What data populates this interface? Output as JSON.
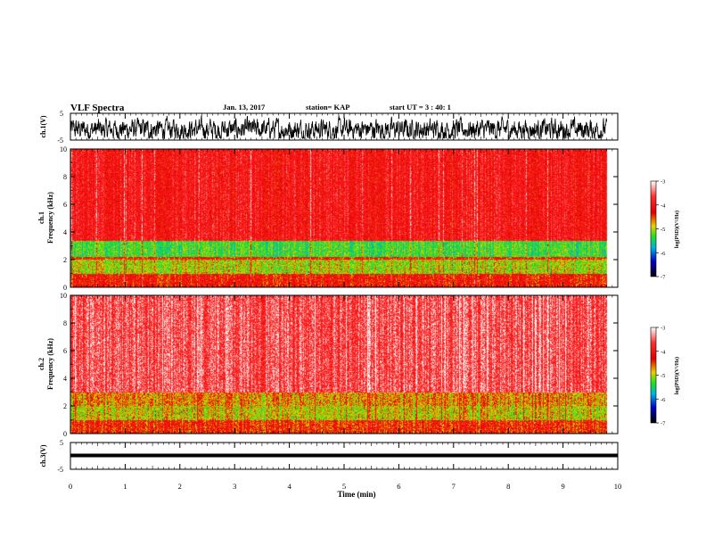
{
  "header": {
    "title": "VLF Spectra",
    "date": "Jan. 13, 2017",
    "station": "station= KAP",
    "start": "start  UT  =  3 : 40: 1"
  },
  "colors": {
    "waveform": "#000000",
    "bar_stops": [
      "#ffffff",
      "#ff2020",
      "#e8d000",
      "#20e020",
      "#00a0e0",
      "#0000c8",
      "#000000"
    ]
  },
  "chart_data": [
    {
      "id": "ch1-waveform",
      "type": "line",
      "ylabel": "ch.1(V)",
      "ylim": [
        -5,
        5
      ],
      "yticks": [
        "5",
        "-5"
      ],
      "xlim": [
        0,
        10
      ],
      "note_series": "dense noise waveform between about -4 V and +4 V, 0 to 9.8 min"
    },
    {
      "id": "ch1-spectrogram",
      "type": "heatmap",
      "ylabel": "ch.1\nFrequency (kHz)",
      "ylim": [
        0,
        10
      ],
      "yticks": [
        "0",
        "2",
        "4",
        "6",
        "8",
        "10"
      ],
      "xlim": [
        0,
        10
      ],
      "data_end_min": 9.8,
      "colorbar": {
        "label": "log(PSD)(V²/Hz)",
        "range": [
          -7,
          -3
        ],
        "ticks": [
          "-3",
          "-4",
          "-5",
          "-6",
          "-7"
        ]
      },
      "bands": [
        {
          "from_khz": 0,
          "to_khz": 1.0,
          "level": -4.2
        },
        {
          "from_khz": 1.0,
          "to_khz": 2.0,
          "level": -4.9
        },
        {
          "from_khz": 2.0,
          "to_khz": 2.2,
          "level": -4.3
        },
        {
          "from_khz": 2.2,
          "to_khz": 3.4,
          "level": -5.2
        },
        {
          "from_khz": 3.4,
          "to_khz": 10,
          "level": -3.9
        }
      ]
    },
    {
      "id": "ch2-spectrogram",
      "type": "heatmap",
      "ylabel": "ch.2\nFrequency (kHz)",
      "ylim": [
        0,
        10
      ],
      "yticks": [
        "0",
        "2",
        "4",
        "6",
        "8",
        "10"
      ],
      "xlim": [
        0,
        10
      ],
      "data_end_min": 9.8,
      "colorbar": {
        "label": "log(PSD)(V²/Hz)",
        "range": [
          -7,
          -3
        ],
        "ticks": [
          "-3",
          "-4",
          "-5",
          "-6",
          "-7"
        ]
      },
      "bands": [
        {
          "from_khz": 0,
          "to_khz": 1.0,
          "level": -4.3
        },
        {
          "from_khz": 1.0,
          "to_khz": 2.0,
          "level": -4.8
        },
        {
          "from_khz": 2.0,
          "to_khz": 3.0,
          "level": -4.6
        },
        {
          "from_khz": 3.0,
          "to_khz": 10,
          "level": -3.5
        }
      ]
    },
    {
      "id": "ch3-waveform",
      "type": "line",
      "ylabel": "ch.3(V)",
      "ylim": [
        -5,
        5
      ],
      "yticks": [
        "5",
        "-5"
      ],
      "xlim": [
        0,
        10
      ],
      "note_series": "flat trace at about 0 V"
    }
  ],
  "xaxis": {
    "label": "Time (min)",
    "ticks": [
      "0",
      "1",
      "2",
      "3",
      "4",
      "5",
      "6",
      "7",
      "8",
      "9",
      "10"
    ]
  }
}
